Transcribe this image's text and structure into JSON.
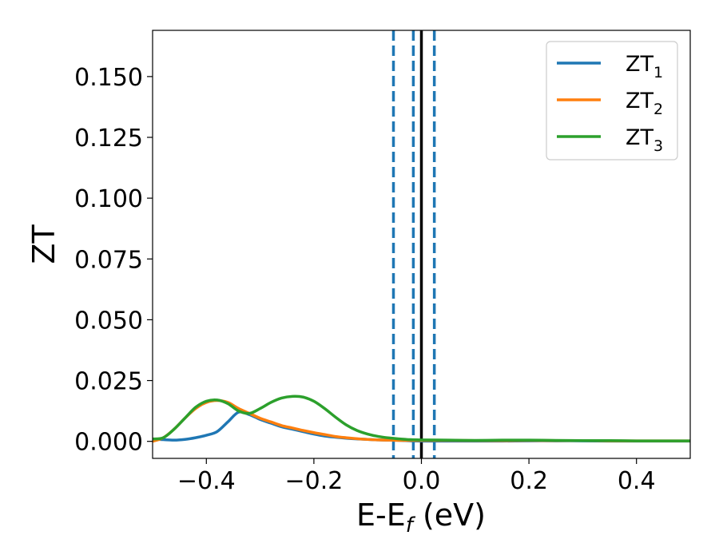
{
  "chart_data": {
    "type": "line",
    "xlabel_main": "E-E",
    "xlabel_sub": "f",
    "xlabel_unit": " (eV)",
    "ylabel": "ZT",
    "xlim": [
      -0.5,
      0.5
    ],
    "ylim": [
      -0.007,
      0.169
    ],
    "x_ticks": [
      -0.4,
      -0.2,
      0.0,
      0.2,
      0.4
    ],
    "x_tick_labels": [
      "−0.4",
      "−0.2",
      "0.0",
      "0.2",
      "0.4"
    ],
    "y_ticks": [
      0.0,
      0.025,
      0.05,
      0.075,
      0.1,
      0.125,
      0.15
    ],
    "y_tick_labels": [
      "0.000",
      "0.025",
      "0.050",
      "0.075",
      "0.100",
      "0.125",
      "0.150"
    ],
    "grid": false,
    "legend_position": "top-right",
    "vlines": [
      {
        "x": -0.052,
        "style": "dashed",
        "color": "#1f77b4"
      },
      {
        "x": -0.015,
        "style": "dashed",
        "color": "#1f77b4"
      },
      {
        "x": 0.024,
        "style": "dashed",
        "color": "#1f77b4"
      },
      {
        "x": 0.0,
        "style": "solid",
        "color": "#000000"
      }
    ],
    "series": [
      {
        "name_main": "ZT",
        "name_sub": "1",
        "color": "#1f77b4",
        "x": [
          -0.5,
          -0.48,
          -0.46,
          -0.44,
          -0.42,
          -0.4,
          -0.38,
          -0.36,
          -0.34,
          -0.32,
          -0.3,
          -0.28,
          -0.26,
          -0.24,
          -0.22,
          -0.2,
          -0.18,
          -0.16,
          -0.14,
          -0.12,
          -0.1,
          -0.08,
          -0.06,
          -0.04,
          -0.02,
          0.0,
          0.05,
          0.1,
          0.15,
          0.2,
          0.25,
          0.3,
          0.35,
          0.4,
          0.45,
          0.5
        ],
        "y": [
          0.001,
          0.0007,
          0.0005,
          0.0008,
          0.0015,
          0.0025,
          0.004,
          0.008,
          0.012,
          0.011,
          0.009,
          0.0075,
          0.006,
          0.005,
          0.004,
          0.003,
          0.0022,
          0.0017,
          0.0013,
          0.001,
          0.0008,
          0.0006,
          0.0005,
          0.0004,
          0.0002,
          0.0001,
          0.0001,
          0.0001,
          0.0001,
          0.0002,
          0.0002,
          0.0002,
          0.0001,
          0.0001,
          0.0001,
          0.0001
        ]
      },
      {
        "name_main": "ZT",
        "name_sub": "2",
        "color": "#ff7f0e",
        "x": [
          -0.5,
          -0.48,
          -0.46,
          -0.44,
          -0.42,
          -0.4,
          -0.38,
          -0.36,
          -0.34,
          -0.32,
          -0.3,
          -0.28,
          -0.26,
          -0.24,
          -0.22,
          -0.2,
          -0.18,
          -0.16,
          -0.14,
          -0.12,
          -0.1,
          -0.08,
          -0.06,
          -0.04,
          -0.02,
          0.0,
          0.05,
          0.1,
          0.15,
          0.2,
          0.25,
          0.3,
          0.35,
          0.4,
          0.45,
          0.5
        ],
        "y": [
          0.0,
          0.0015,
          0.005,
          0.0095,
          0.0135,
          0.016,
          0.0168,
          0.016,
          0.0135,
          0.0115,
          0.0095,
          0.008,
          0.0065,
          0.0055,
          0.0045,
          0.0036,
          0.0028,
          0.002,
          0.0015,
          0.0011,
          0.0008,
          0.0006,
          0.0005,
          0.0004,
          0.0004,
          0.0004,
          0.0004,
          0.0003,
          0.0003,
          0.0004,
          0.0003,
          0.0003,
          0.0002,
          0.0002,
          0.0002,
          0.0002
        ]
      },
      {
        "name_main": "ZT",
        "name_sub": "3",
        "color": "#2ca02c",
        "x": [
          -0.5,
          -0.48,
          -0.46,
          -0.44,
          -0.42,
          -0.4,
          -0.38,
          -0.36,
          -0.34,
          -0.32,
          -0.3,
          -0.28,
          -0.26,
          -0.24,
          -0.22,
          -0.2,
          -0.18,
          -0.16,
          -0.14,
          -0.12,
          -0.1,
          -0.08,
          -0.06,
          -0.04,
          -0.02,
          0.0,
          0.05,
          0.1,
          0.15,
          0.2,
          0.25,
          0.3,
          0.35,
          0.4,
          0.45,
          0.5
        ],
        "y": [
          0.001,
          0.0015,
          0.005,
          0.0095,
          0.014,
          0.0165,
          0.017,
          0.0155,
          0.0125,
          0.0115,
          0.0135,
          0.016,
          0.0178,
          0.0185,
          0.0182,
          0.0165,
          0.0135,
          0.01,
          0.0068,
          0.0045,
          0.003,
          0.002,
          0.0014,
          0.001,
          0.0007,
          0.0006,
          0.0005,
          0.0004,
          0.0005,
          0.0005,
          0.0004,
          0.0003,
          0.0003,
          0.0002,
          0.0002,
          0.0002
        ]
      }
    ]
  }
}
